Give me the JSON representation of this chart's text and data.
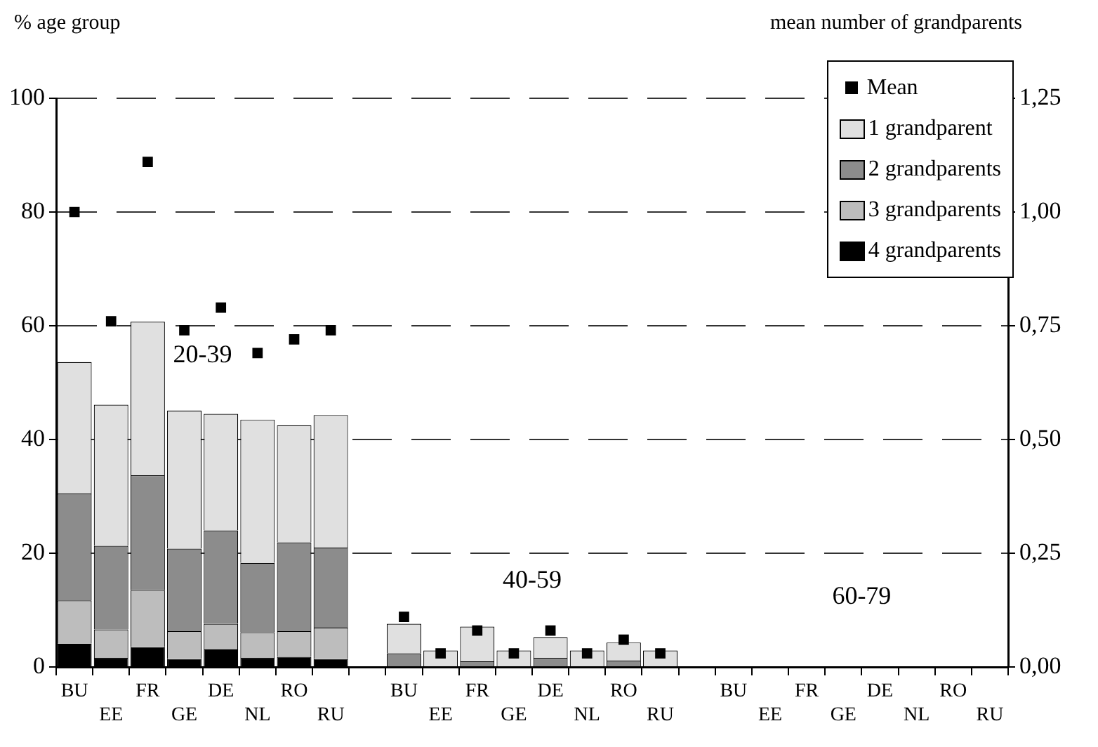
{
  "chart_data": {
    "type": "bar",
    "stacked": true,
    "ylabel": "% age group",
    "y2label": "mean number of grandparents",
    "categories": [
      "BU",
      "EE",
      "FR",
      "GE",
      "DE",
      "NL",
      "RO",
      "RU",
      null,
      "BU",
      "EE",
      "FR",
      "GE",
      "DE",
      "NL",
      "RO",
      "RU",
      null,
      "BU",
      "EE",
      "FR",
      "GE",
      "DE",
      "NL",
      "RO",
      "RU"
    ],
    "series": [
      {
        "name": "4 grandparents",
        "color": "#000000",
        "values": [
          4.1,
          1.6,
          3.5,
          1.4,
          3.1,
          1.6,
          1.8,
          1.4,
          null,
          0,
          0,
          0,
          0,
          0,
          0,
          0,
          0,
          null,
          0,
          0,
          0,
          0,
          0,
          0,
          0,
          0
        ]
      },
      {
        "name": "3 grandparents",
        "color": "#bdbdbd",
        "values": [
          7.6,
          5.0,
          10.0,
          4.9,
          4.5,
          4.5,
          4.5,
          5.5,
          null,
          0,
          0,
          0,
          0,
          0,
          0,
          0,
          0,
          null,
          0,
          0,
          0,
          0,
          0,
          0,
          0,
          0
        ]
      },
      {
        "name": "2 grandparents",
        "color": "#8c8c8c",
        "values": [
          18.8,
          14.7,
          20.2,
          14.5,
          16.4,
          12.2,
          15.6,
          14.1,
          null,
          2.4,
          0,
          1.0,
          0,
          1.6,
          0,
          1.1,
          0,
          null,
          0,
          0,
          0,
          0,
          0,
          0,
          0,
          0
        ]
      },
      {
        "name": "1 grandparent",
        "color": "#e0e0e0",
        "values": [
          23.1,
          24.8,
          27.0,
          24.3,
          20.5,
          25.2,
          20.6,
          23.3,
          null,
          5.2,
          2.9,
          6.1,
          2.9,
          3.6,
          2.9,
          3.2,
          2.9,
          null,
          0,
          0,
          0,
          0,
          0,
          0,
          0,
          0
        ]
      },
      {
        "name": "Mean",
        "type": "scatter",
        "marker": "square",
        "axis": "y2",
        "color": "#000000",
        "values": [
          1.0,
          0.76,
          1.11,
          0.74,
          0.79,
          0.69,
          0.72,
          0.74,
          null,
          0.11,
          0.03,
          0.08,
          0.03,
          0.08,
          0.03,
          0.06,
          0.03,
          null,
          null,
          null,
          null,
          null,
          null,
          null,
          null,
          null
        ]
      }
    ],
    "ylim": [
      0,
      100
    ],
    "yticks": [
      0,
      20,
      40,
      60,
      80,
      100
    ],
    "y2lim": [
      0,
      1.25
    ],
    "y2ticks": [
      {
        "value": 0,
        "label": "0,00"
      },
      {
        "value": 0.25,
        "label": "0,25"
      },
      {
        "value": 0.5,
        "label": "0,50"
      },
      {
        "value": 0.75,
        "label": "0,75"
      },
      {
        "value": 1,
        "label": "1,00"
      },
      {
        "value": 1.25,
        "label": "1,25"
      }
    ],
    "grid": "y",
    "legend": "top right",
    "annotations": [
      "20-39",
      "40-59",
      "60-79"
    ]
  }
}
